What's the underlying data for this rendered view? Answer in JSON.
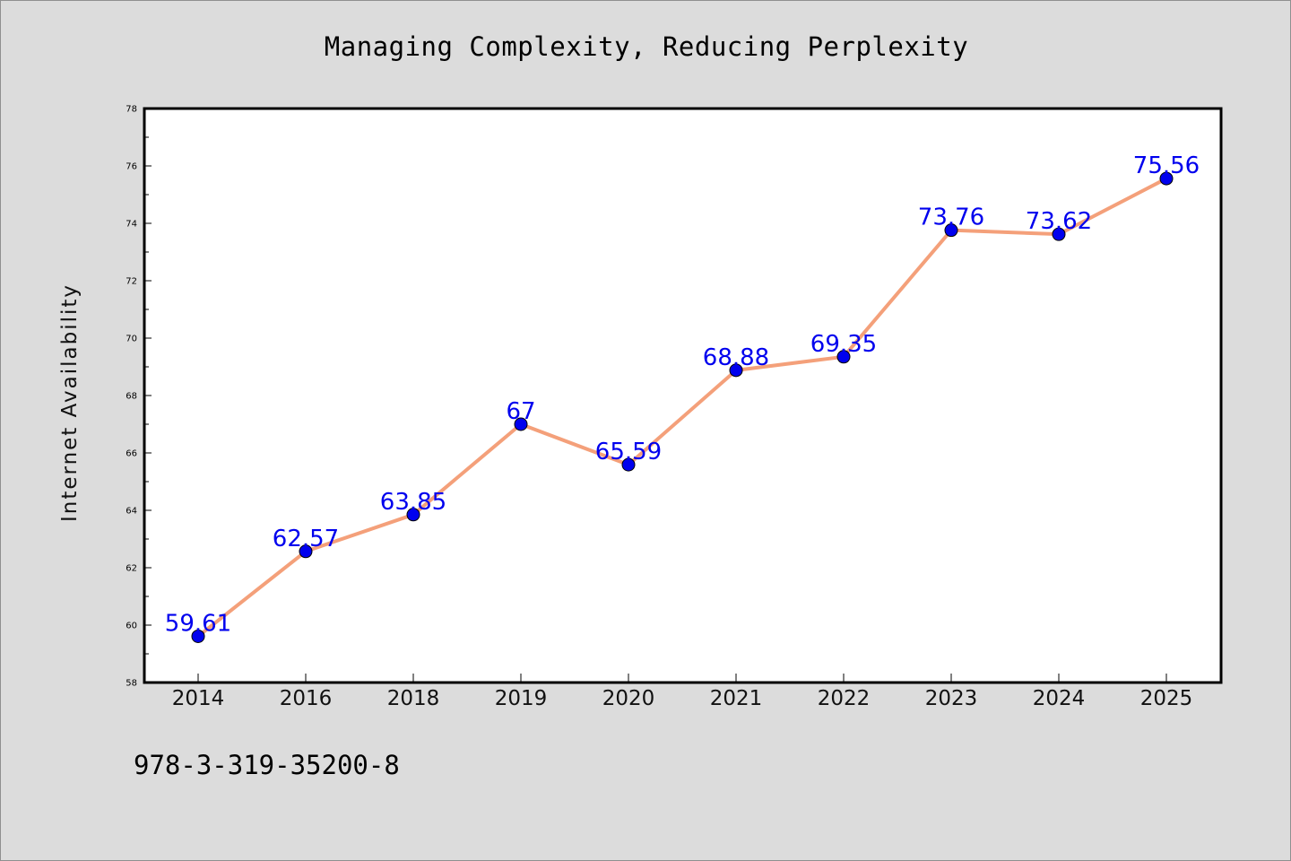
{
  "chart_data": {
    "type": "line",
    "title": "Managing Complexity, Reducing Perplexity",
    "xlabel": "",
    "ylabel": "Internet Availability",
    "categories": [
      "2014",
      "2016",
      "2018",
      "2019",
      "2020",
      "2021",
      "2022",
      "2023",
      "2024",
      "2025"
    ],
    "values": [
      59.61,
      62.57,
      63.85,
      67,
      65.59,
      68.88,
      69.35,
      73.76,
      73.62,
      75.56
    ],
    "data_labels": [
      "59.61",
      "62.57",
      "63.85",
      "67",
      "65.59",
      "68.88",
      "69.35",
      "73.76",
      "73.62",
      "75.56"
    ],
    "ylim": [
      58,
      78
    ],
    "yticks": [
      "58",
      "60",
      "62",
      "64",
      "66",
      "68",
      "70",
      "72",
      "74",
      "76",
      "78"
    ],
    "grid": false,
    "legend": "none",
    "colors": {
      "line": "#f4a07a",
      "marker": "#0000ee",
      "label": "#0000ee",
      "background": "#dcdcdc",
      "plot_background": "#ffffff"
    }
  },
  "footer_text": "978-3-319-35200-8"
}
